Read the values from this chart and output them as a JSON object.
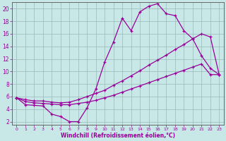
{
  "background_color": "#c8e8e8",
  "grid_color": "#b0c8c8",
  "line_color": "#990099",
  "xlim": [
    -0.5,
    23.5
  ],
  "ylim": [
    1.5,
    21
  ],
  "xlabel": "Windchill (Refroidissement éolien,°C)",
  "xticks": [
    0,
    1,
    2,
    3,
    4,
    5,
    6,
    7,
    8,
    9,
    10,
    11,
    12,
    13,
    14,
    15,
    16,
    17,
    18,
    19,
    20,
    21,
    22,
    23
  ],
  "yticks": [
    2,
    4,
    6,
    8,
    10,
    12,
    14,
    16,
    18,
    20
  ],
  "series": [
    [
      5.8,
      4.7,
      4.6,
      4.5,
      3.2,
      2.8,
      2.0,
      2.0,
      4.2,
      7.2,
      11.5,
      14.7,
      18.5,
      16.5,
      19.5,
      20.4,
      20.8,
      19.2,
      18.9,
      16.5,
      15.2,
      12.5,
      10.5,
      9.5
    ],
    [
      5.8,
      5.5,
      5.3,
      5.3,
      5.1,
      5.0,
      5.1,
      5.5,
      6.0,
      6.5,
      7.0,
      7.8,
      8.5,
      9.3,
      10.1,
      11.0,
      11.8,
      12.6,
      13.5,
      14.3,
      15.2,
      16.0,
      15.5,
      9.5
    ],
    [
      5.8,
      5.2,
      5.0,
      4.9,
      4.8,
      4.7,
      4.7,
      4.9,
      5.1,
      5.4,
      5.8,
      6.2,
      6.7,
      7.2,
      7.7,
      8.2,
      8.7,
      9.2,
      9.7,
      10.2,
      10.7,
      11.2,
      9.5,
      9.5
    ]
  ]
}
